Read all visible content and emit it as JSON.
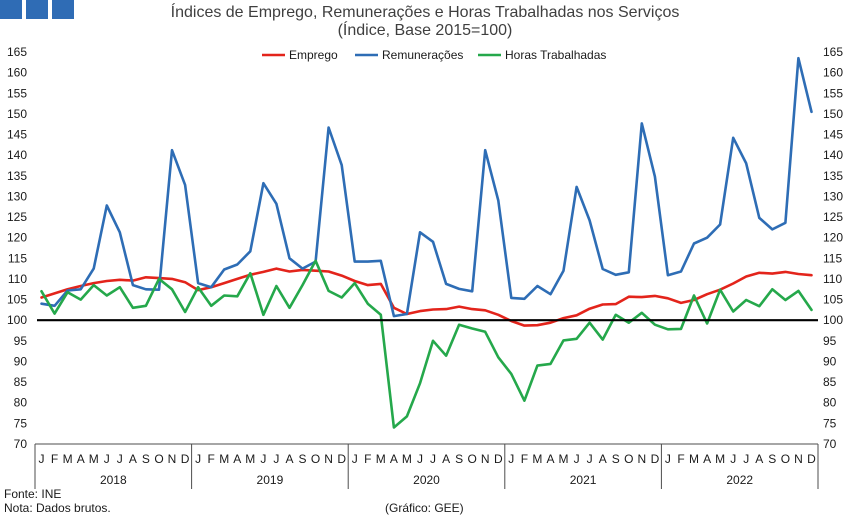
{
  "colors": {
    "logo": "#2f6cb5",
    "reference_line": "#000000"
  },
  "chart_data": {
    "type": "line",
    "title": "Índices de Emprego, Remunerações e Horas Trabalhadas nos Serviços",
    "subtitle": "(Índice, Base 2015=100)",
    "categories": {
      "years": [
        "2018",
        "2019",
        "2020",
        "2021",
        "2022"
      ],
      "months": [
        "J",
        "F",
        "M",
        "A",
        "M",
        "J",
        "J",
        "A",
        "S",
        "O",
        "N",
        "D"
      ]
    },
    "series": [
      {
        "name": "Emprego",
        "color": "#e3241b",
        "values": [
          105.5,
          106.5,
          107.5,
          108.3,
          109.0,
          109.5,
          109.8,
          109.6,
          110.4,
          110.2,
          110.0,
          109.2,
          107.3,
          108.0,
          109.0,
          110.0,
          111.0,
          111.7,
          112.5,
          111.8,
          112.2,
          112.0,
          111.8,
          110.8,
          109.5,
          108.5,
          108.8,
          103.0,
          101.5,
          102.2,
          102.6,
          102.7,
          103.3,
          102.7,
          102.4,
          101.3,
          99.8,
          98.7,
          98.8,
          99.4,
          100.5,
          101.2,
          102.8,
          103.8,
          103.9,
          105.7,
          105.6,
          105.9,
          105.3,
          104.2,
          104.9,
          106.3,
          107.4,
          108.9,
          110.6,
          111.5,
          111.3,
          111.7,
          111.2,
          110.9
        ]
      },
      {
        "name": "Remunerações",
        "color": "#2e6db5",
        "values": [
          104.0,
          103.5,
          107.2,
          107.5,
          112.5,
          127.8,
          121.3,
          108.5,
          107.5,
          107.4,
          141.2,
          132.8,
          109.0,
          108.0,
          112.3,
          113.5,
          116.7,
          133.2,
          128.2,
          115.0,
          112.5,
          114.2,
          146.7,
          137.6,
          114.2,
          114.2,
          114.4,
          101.0,
          101.5,
          121.3,
          119.0,
          108.8,
          107.6,
          107.0,
          141.2,
          129.0,
          105.4,
          105.2,
          108.3,
          106.3,
          112.0,
          132.3,
          124.2,
          112.4,
          111.0,
          111.6,
          147.7,
          134.8,
          110.9,
          111.8,
          118.6,
          120.0,
          123.2,
          144.2,
          138.0,
          124.8,
          122.0,
          123.6,
          163.5,
          150.5
        ]
      },
      {
        "name": "Horas Trabalhadas",
        "color": "#25a84b",
        "values": [
          107.0,
          101.6,
          106.8,
          105.0,
          108.5,
          106.0,
          108.0,
          103.0,
          103.5,
          110.0,
          107.5,
          102.0,
          108.0,
          103.5,
          106.0,
          105.8,
          111.4,
          101.3,
          108.3,
          103.0,
          108.5,
          114.4,
          107.1,
          105.5,
          109.0,
          104.0,
          101.3,
          74.0,
          76.7,
          84.7,
          95.0,
          91.4,
          98.9,
          98.0,
          97.2,
          91.0,
          87.0,
          80.5,
          89.0,
          89.4,
          95.1,
          95.5,
          99.4,
          95.3,
          101.3,
          99.4,
          101.8,
          98.9,
          97.8,
          97.9,
          106.0,
          99.2,
          107.4,
          102.1,
          104.9,
          103.4,
          107.5,
          104.9,
          107.1,
          102.5
        ]
      }
    ],
    "ylim": [
      70,
      165
    ],
    "yticks": [
      70,
      75,
      80,
      85,
      90,
      95,
      100,
      105,
      110,
      115,
      120,
      125,
      130,
      135,
      140,
      145,
      150,
      155,
      160,
      165
    ],
    "dual_y_axis": true,
    "reference_line": 100,
    "grid": false,
    "legend": "top"
  },
  "footer": {
    "source": "Fonte: INE",
    "note": "Nota: Dados brutos.",
    "credit": "(Gráfico: GEE)"
  }
}
